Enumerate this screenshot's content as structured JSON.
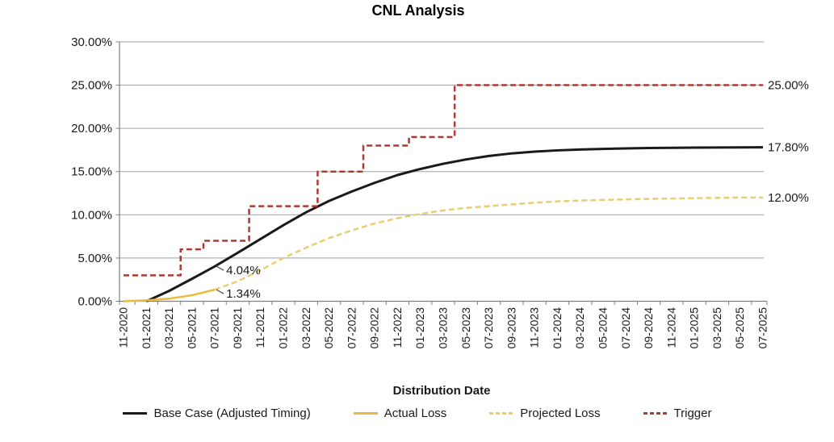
{
  "chart_data": {
    "type": "line",
    "title": "CNL Analysis",
    "xlabel": "Distribution Date",
    "ylabel": "",
    "ylim": [
      0,
      30
    ],
    "grid": true,
    "legend_position": "bottom",
    "colors": {
      "base_case": "#1a1a1a",
      "actual_loss": "#e9bc40",
      "projected_loss": "#eacd70",
      "trigger": "#b03a33",
      "gridline": "#a0a0a0",
      "axis": "#808080",
      "text": "#1a1a1a"
    },
    "yticks": [
      {
        "label": "30.00%",
        "value": 30
      },
      {
        "label": "25.00%",
        "value": 25
      },
      {
        "label": "20.00%",
        "value": 20
      },
      {
        "label": "15.00%",
        "value": 15
      },
      {
        "label": "10.00%",
        "value": 10
      },
      {
        "label": "5.00%",
        "value": 5
      },
      {
        "label": "0.00%",
        "value": 0
      }
    ],
    "categories": [
      "11-2020",
      "01-2021",
      "03-2021",
      "05-2021",
      "07-2021",
      "09-2021",
      "11-2021",
      "01-2022",
      "03-2022",
      "05-2022",
      "07-2022",
      "09-2022",
      "11-2022",
      "01-2023",
      "03-2023",
      "05-2023",
      "07-2023",
      "09-2023",
      "11-2023",
      "01-2024",
      "03-2024",
      "05-2024",
      "07-2024",
      "09-2024",
      "11-2024",
      "01-2025",
      "03-2025",
      "05-2025",
      "07-2025"
    ],
    "series": [
      {
        "name": "Base Case (Adjusted Timing)",
        "color": "#1a1a1a",
        "style": "solid",
        "width": 3,
        "step": false,
        "values": [
          null,
          0,
          1.2,
          2.6,
          4.04,
          5.6,
          7.2,
          8.8,
          10.3,
          11.6,
          12.7,
          13.7,
          14.6,
          15.3,
          15.9,
          16.4,
          16.8,
          17.1,
          17.3,
          17.45,
          17.55,
          17.62,
          17.68,
          17.72,
          17.75,
          17.77,
          17.78,
          17.79,
          17.8
        ]
      },
      {
        "name": "Actual Loss",
        "color": "#e9bc40",
        "style": "solid",
        "width": 2.5,
        "step": false,
        "values": [
          0,
          0.1,
          0.3,
          0.7,
          1.34,
          null,
          null,
          null,
          null,
          null,
          null,
          null,
          null,
          null,
          null,
          null,
          null,
          null,
          null,
          null,
          null,
          null,
          null,
          null,
          null,
          null,
          null,
          null,
          null
        ]
      },
      {
        "name": "Projected Loss",
        "color": "#eacd70",
        "style": "dashed",
        "width": 2.5,
        "step": false,
        "values": [
          null,
          null,
          null,
          null,
          1.34,
          2.3,
          3.6,
          5.0,
          6.2,
          7.3,
          8.2,
          9.0,
          9.6,
          10.1,
          10.5,
          10.8,
          11.0,
          11.2,
          11.4,
          11.55,
          11.65,
          11.72,
          11.78,
          11.84,
          11.88,
          11.92,
          11.96,
          12.0,
          12.0
        ]
      },
      {
        "name": "Trigger",
        "color": "#b03a33",
        "style": "dashed",
        "width": 2.5,
        "step": true,
        "values": [
          3,
          3,
          3,
          6,
          7,
          7,
          11,
          11,
          11,
          15,
          15,
          18,
          18,
          19,
          19,
          25,
          25,
          25,
          25,
          25,
          25,
          25,
          25,
          25,
          25,
          25,
          25,
          25,
          25
        ]
      }
    ],
    "annotations": [
      {
        "text": "4.04%",
        "target_series": "Base Case (Adjusted Timing)",
        "category": "07-2021",
        "value": 4.04,
        "placement": "callout"
      },
      {
        "text": "1.34%",
        "target_series": "Actual Loss",
        "category": "07-2021",
        "value": 1.34,
        "placement": "callout"
      },
      {
        "text": "25.00%",
        "target_series": "Trigger",
        "value": 25,
        "placement": "right-edge"
      },
      {
        "text": "17.80%",
        "target_series": "Base Case (Adjusted Timing)",
        "value": 17.8,
        "placement": "right-edge"
      },
      {
        "text": "12.00%",
        "target_series": "Projected Loss",
        "value": 12,
        "placement": "right-edge"
      }
    ]
  }
}
